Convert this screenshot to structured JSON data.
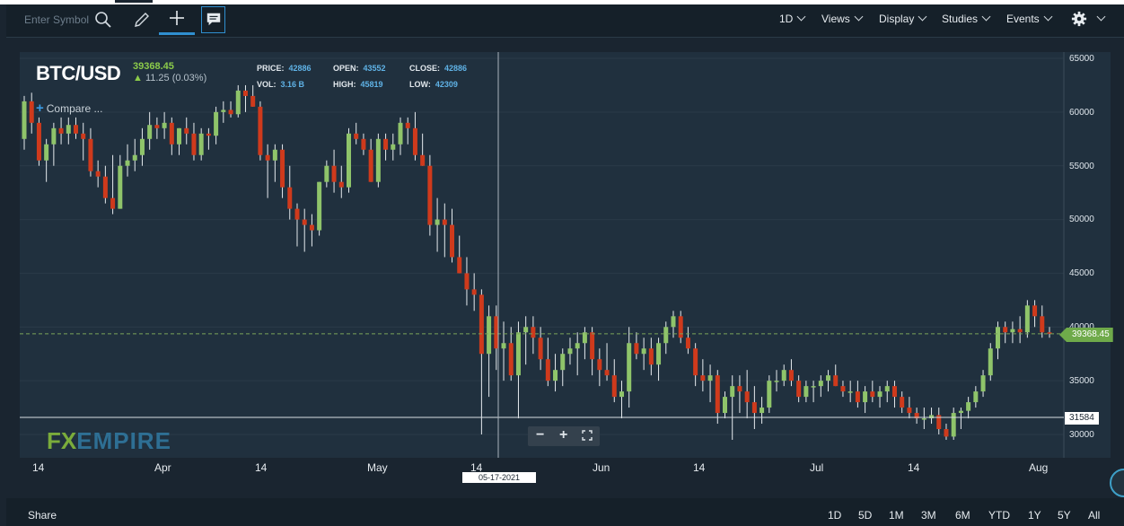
{
  "toolbar": {
    "search_placeholder": "Enter Symbol",
    "menus": [
      "1D",
      "Views",
      "Display",
      "Studies",
      "Events"
    ],
    "icons": [
      "search-icon",
      "pencil-icon",
      "crosshair-icon",
      "comment-icon",
      "gear-icon"
    ]
  },
  "header": {
    "symbol": "BTC/USD",
    "last_price": "39368.45",
    "change": "11.25 (0.03%)",
    "change_direction": "up",
    "stats": {
      "price_label": "PRICE:",
      "price": "42886",
      "open_label": "OPEN:",
      "open": "43552",
      "close_label": "CLOSE:",
      "close": "42886",
      "vol_label": "VOL:",
      "vol": "3.16 B",
      "high_label": "HIGH:",
      "high": "45819",
      "low_label": "LOW:",
      "low": "42309"
    },
    "compare_label": "Compare ..."
  },
  "chart": {
    "y_ticks": [
      "65000",
      "60000",
      "55000",
      "50000",
      "45000",
      "40000",
      "35000",
      "30000"
    ],
    "x_ticks": [
      "14",
      "Apr",
      "14",
      "May",
      "14",
      "Jun",
      "14",
      "Jul",
      "14",
      "Aug"
    ],
    "price_tag": "39368.45",
    "crosshair_value": "31584",
    "crosshair_date": "05-17-2021",
    "watermark": {
      "part1": "FX",
      "part2": "EMPIRE"
    },
    "colors": {
      "up": "#8fc46a",
      "down": "#cf3a1c",
      "background": "#20303e",
      "price_line": "#7aa35a"
    }
  },
  "chart_data": {
    "type": "candlestick",
    "title": "BTC/USD",
    "ylim": [
      28000,
      66000
    ],
    "ohlc": [
      [
        57500,
        61500,
        56500,
        61000
      ],
      [
        61000,
        61800,
        58000,
        59000
      ],
      [
        59000,
        59500,
        55000,
        55500
      ],
      [
        55500,
        57500,
        53500,
        57000
      ],
      [
        57000,
        59000,
        55000,
        58500
      ],
      [
        58500,
        59500,
        57000,
        58000
      ],
      [
        58000,
        59500,
        57000,
        58800
      ],
      [
        58800,
        59500,
        57500,
        58000
      ],
      [
        58000,
        59000,
        55500,
        57500
      ],
      [
        57500,
        58500,
        54000,
        54500
      ],
      [
        54500,
        55500,
        53000,
        54000
      ],
      [
        54000,
        55000,
        51500,
        52000
      ],
      [
        52000,
        56000,
        50500,
        51000
      ],
      [
        51000,
        56000,
        51000,
        55000
      ],
      [
        55000,
        57000,
        54000,
        55500
      ],
      [
        55500,
        57500,
        54500,
        56000
      ],
      [
        56000,
        58500,
        55000,
        57500
      ],
      [
        57500,
        60000,
        56500,
        58800
      ],
      [
        58800,
        59500,
        57500,
        58500
      ],
      [
        58500,
        60000,
        57500,
        59000
      ],
      [
        59000,
        59500,
        56000,
        57000
      ],
      [
        57000,
        58500,
        56000,
        58500
      ],
      [
        58500,
        59500,
        57000,
        58000
      ],
      [
        58000,
        59000,
        55500,
        56000
      ],
      [
        56000,
        58500,
        55500,
        58000
      ],
      [
        58000,
        58500,
        56500,
        57800
      ],
      [
        57800,
        60500,
        57000,
        60000
      ],
      [
        60000,
        61000,
        59000,
        60200
      ],
      [
        60200,
        61000,
        59500,
        59800
      ],
      [
        59800,
        62500,
        59500,
        62000
      ],
      [
        62000,
        62500,
        60000,
        61500
      ],
      [
        61500,
        62500,
        60500,
        60500
      ],
      [
        60500,
        61000,
        55500,
        56000
      ],
      [
        56000,
        57000,
        52000,
        55500
      ],
      [
        55500,
        57000,
        53500,
        56500
      ],
      [
        56500,
        57000,
        52000,
        53000
      ],
      [
        53000,
        55000,
        50000,
        51000
      ],
      [
        51000,
        51500,
        47500,
        50000
      ],
      [
        50000,
        51000,
        47000,
        49500
      ],
      [
        49500,
        50500,
        47500,
        49000
      ],
      [
        49000,
        53500,
        48500,
        53500
      ],
      [
        53500,
        55500,
        53000,
        55000
      ],
      [
        55000,
        56500,
        52500,
        53500
      ],
      [
        53500,
        55000,
        52000,
        53000
      ],
      [
        53000,
        58500,
        52500,
        58000
      ],
      [
        58000,
        59000,
        57000,
        57500
      ],
      [
        57500,
        58000,
        56000,
        56500
      ],
      [
        56500,
        57500,
        53500,
        53500
      ],
      [
        53500,
        58000,
        53000,
        57500
      ],
      [
        57500,
        58000,
        55500,
        56500
      ],
      [
        56500,
        58000,
        55500,
        57000
      ],
      [
        57000,
        59500,
        56000,
        59000
      ],
      [
        59000,
        59500,
        57000,
        58500
      ],
      [
        58500,
        60000,
        55500,
        56000
      ],
      [
        56000,
        58000,
        55000,
        55000
      ],
      [
        55000,
        56000,
        48500,
        49500
      ],
      [
        49500,
        52000,
        47000,
        50000
      ],
      [
        50000,
        51500,
        46500,
        49500
      ],
      [
        49500,
        51000,
        46000,
        46500
      ],
      [
        46500,
        48500,
        45000,
        45000
      ],
      [
        45000,
        46500,
        42000,
        43500
      ],
      [
        43500,
        45000,
        41500,
        43000
      ],
      [
        43000,
        43500,
        30000,
        37500
      ],
      [
        37500,
        42000,
        33500,
        41000
      ],
      [
        41000,
        42000,
        36000,
        38000
      ],
      [
        38000,
        40500,
        35000,
        38500
      ],
      [
        38500,
        40000,
        35000,
        35500
      ],
      [
        35500,
        40500,
        31500,
        39500
      ],
      [
        39500,
        41000,
        36500,
        40000
      ],
      [
        40000,
        41000,
        37500,
        39000
      ],
      [
        39000,
        40000,
        36000,
        37000
      ],
      [
        37000,
        39000,
        34500,
        35000
      ],
      [
        35000,
        37500,
        34000,
        36000
      ],
      [
        36000,
        38000,
        34500,
        37500
      ],
      [
        37500,
        39000,
        36500,
        38000
      ],
      [
        38000,
        39500,
        35500,
        38500
      ],
      [
        38500,
        40000,
        37000,
        39500
      ],
      [
        39500,
        40000,
        35500,
        37000
      ],
      [
        37000,
        38000,
        34500,
        36000
      ],
      [
        36000,
        38500,
        35000,
        35500
      ],
      [
        35500,
        37000,
        33000,
        33500
      ],
      [
        33500,
        35000,
        31500,
        34000
      ],
      [
        34000,
        40000,
        32500,
        38500
      ],
      [
        38500,
        39500,
        37000,
        37500
      ],
      [
        37500,
        39000,
        36000,
        38000
      ],
      [
        38000,
        39000,
        35500,
        36500
      ],
      [
        36500,
        39000,
        35000,
        38500
      ],
      [
        38500,
        40500,
        37500,
        40000
      ],
      [
        40000,
        41500,
        39000,
        41000
      ],
      [
        41000,
        41500,
        38500,
        39000
      ],
      [
        39000,
        40000,
        37500,
        38000
      ],
      [
        38000,
        38500,
        34500,
        35500
      ],
      [
        35500,
        37000,
        34000,
        35000
      ],
      [
        35000,
        36500,
        33000,
        35500
      ],
      [
        35500,
        36000,
        31000,
        32000
      ],
      [
        32000,
        34000,
        31500,
        33500
      ],
      [
        33500,
        35500,
        29500,
        34500
      ],
      [
        34500,
        35500,
        32000,
        34000
      ],
      [
        34000,
        36000,
        31500,
        33000
      ],
      [
        33000,
        34500,
        30500,
        32000
      ],
      [
        32000,
        33500,
        31000,
        32500
      ],
      [
        32500,
        35500,
        32000,
        35000
      ],
      [
        35000,
        36000,
        34000,
        35000
      ],
      [
        35000,
        36500,
        34500,
        36000
      ],
      [
        36000,
        37000,
        34500,
        35000
      ],
      [
        35000,
        35500,
        33000,
        33500
      ],
      [
        33500,
        35000,
        33000,
        34500
      ],
      [
        34500,
        35000,
        33000,
        34500
      ],
      [
        34500,
        35500,
        33500,
        35000
      ],
      [
        35000,
        36000,
        34000,
        35500
      ],
      [
        35500,
        36500,
        34500,
        34500
      ],
      [
        34500,
        35000,
        33500,
        34000
      ],
      [
        34000,
        35000,
        33000,
        34000
      ],
      [
        34000,
        35000,
        32500,
        33000
      ],
      [
        33000,
        34500,
        32000,
        34000
      ],
      [
        34000,
        35000,
        33000,
        33500
      ],
      [
        33500,
        34500,
        32500,
        34000
      ],
      [
        34000,
        35000,
        33000,
        34500
      ],
      [
        34500,
        35000,
        32500,
        33500
      ],
      [
        33500,
        34000,
        32000,
        32500
      ],
      [
        32500,
        33500,
        31500,
        32000
      ],
      [
        32000,
        32500,
        31000,
        31500
      ],
      [
        31500,
        32500,
        30500,
        31500
      ],
      [
        31500,
        32500,
        31000,
        31800
      ],
      [
        31800,
        32500,
        30000,
        30500
      ],
      [
        30500,
        31000,
        29500,
        29800
      ],
      [
        29800,
        32500,
        29500,
        32000
      ],
      [
        32000,
        32500,
        30500,
        32200
      ],
      [
        32200,
        33500,
        31500,
        33000
      ],
      [
        33000,
        34500,
        32500,
        34000
      ],
      [
        34000,
        36000,
        33500,
        35500
      ],
      [
        35500,
        38500,
        35000,
        38000
      ],
      [
        38000,
        40500,
        37000,
        40000
      ],
      [
        40000,
        40500,
        38500,
        39500
      ],
      [
        39500,
        40500,
        38500,
        39800
      ],
      [
        39800,
        41000,
        38500,
        39500
      ],
      [
        39500,
        42500,
        39000,
        42000
      ],
      [
        42000,
        42500,
        40000,
        41000
      ],
      [
        41000,
        42000,
        39000,
        39500
      ],
      [
        39500,
        40000,
        39000,
        39368
      ]
    ],
    "price_line": 39368.45,
    "crosshair_y": 31584
  },
  "bottom": {
    "share_label": "Share",
    "ranges": [
      "1D",
      "5D",
      "1M",
      "3M",
      "6M",
      "YTD",
      "1Y",
      "5Y",
      "All"
    ]
  }
}
